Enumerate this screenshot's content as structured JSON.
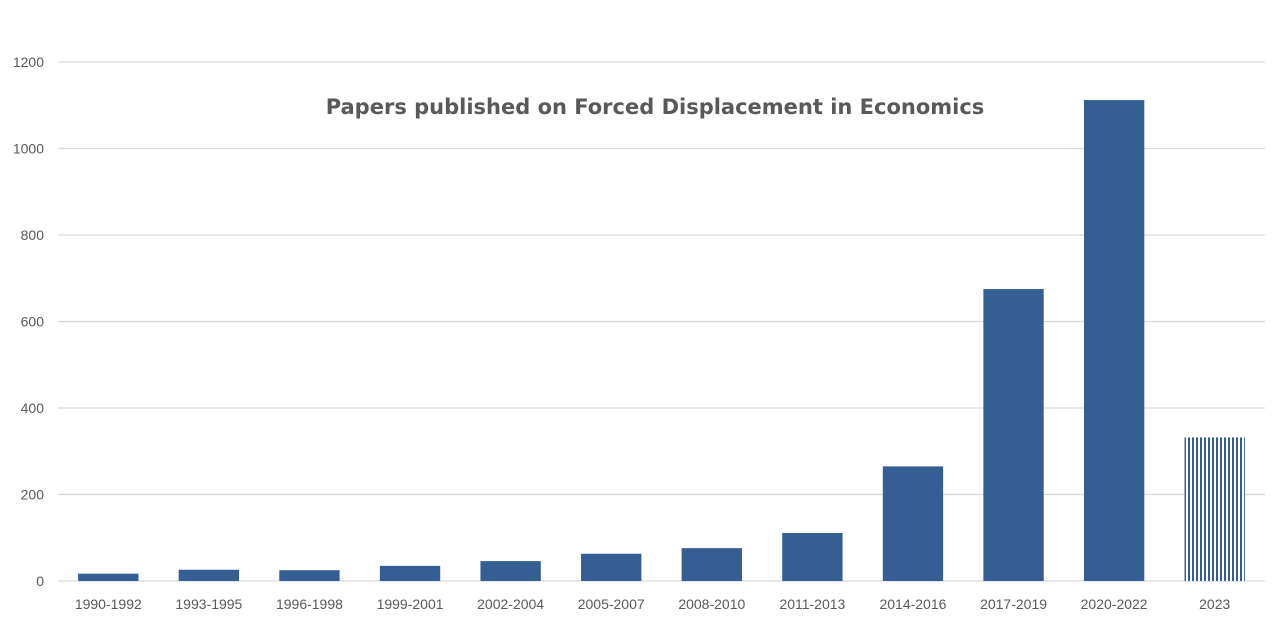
{
  "chart_data": {
    "type": "bar",
    "title": "Papers published on Forced Displacement in Economics",
    "xlabel": "",
    "ylabel": "",
    "categories": [
      "1990-1992",
      "1993-1995",
      "1996-1998",
      "1999-2001",
      "2002-2004",
      "2005-2007",
      "2008-2010",
      "2011-2013",
      "2014-2016",
      "2017-2019",
      "2020-2022",
      "2023"
    ],
    "values": [
      17,
      26,
      25,
      35,
      46,
      63,
      76,
      111,
      265,
      675,
      1112,
      332
    ],
    "ylim": [
      0,
      1200
    ],
    "yticks": [
      0,
      200,
      400,
      600,
      800,
      1000,
      1200
    ],
    "grid": true,
    "legend": "none",
    "bar_color": "#355f92",
    "gridline_color": "#d9d9d9",
    "text_color": "#595959",
    "hatched_categories": [
      "2023"
    ]
  }
}
